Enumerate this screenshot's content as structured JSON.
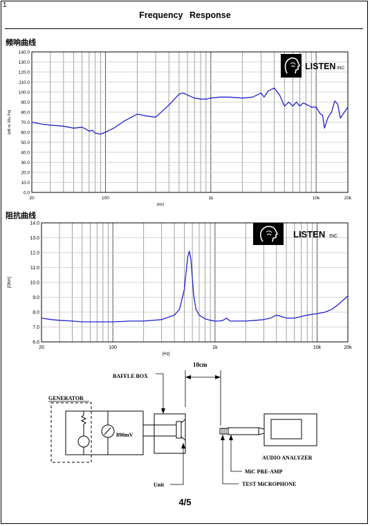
{
  "page": {
    "corner_mark": "1",
    "title": "Frequency    Response",
    "page_number": "4/5"
  },
  "frequency_section": {
    "label": "频响曲线"
  },
  "impedance_section": {
    "label": "阻抗曲线"
  },
  "logo": {
    "text": "LISTEN",
    "suffix": "INC",
    "icon": "head-profile-logo-icon"
  },
  "chart_data": [
    {
      "type": "line",
      "xscale": "log",
      "xlim": [
        20,
        20000
      ],
      "ylim": [
        0,
        140
      ],
      "yticks": [
        0,
        10,
        20,
        30,
        40,
        50,
        60,
        70,
        80,
        90,
        100,
        110,
        120,
        130,
        140
      ],
      "ytick_labels": [
        "0.0",
        "10.0",
        "20.0",
        "30.0",
        "40.0",
        "50.0",
        "60.0",
        "70.0",
        "80.0",
        "90.0",
        "100.0",
        "110.0",
        "120.0",
        "130.0",
        "140.0"
      ],
      "xtick_labels": [
        {
          "v": 20,
          "t": "20"
        },
        {
          "v": 100,
          "t": "100"
        },
        {
          "v": 1000,
          "t": "1k"
        },
        {
          "v": 10000,
          "t": "10k"
        },
        {
          "v": 20000,
          "t": "20k"
        }
      ],
      "xlabel": "[Hz]",
      "ylabel": "[dB re 20u Pa]",
      "grid": true,
      "line_color": "#2020d0",
      "series": [
        {
          "x": [
            20,
            25,
            30,
            40,
            50,
            60,
            65,
            70,
            75,
            80,
            90,
            100,
            120,
            150,
            200,
            250,
            300,
            400,
            500,
            550,
            600,
            700,
            800,
            900,
            1000,
            1200,
            1500,
            2000,
            2500,
            3000,
            3200,
            3500,
            4000,
            4500,
            5000,
            5500,
            6000,
            6500,
            7000,
            7500,
            8000,
            9000,
            10000,
            11000,
            11500,
            12000,
            12500,
            13000,
            14000,
            15000,
            16000,
            17000,
            18000,
            20000
          ],
          "y": [
            70,
            68,
            67,
            66,
            64,
            65,
            63,
            61,
            62,
            59,
            58,
            60,
            64,
            71,
            78,
            76,
            75,
            87,
            98,
            99,
            97,
            94,
            93,
            93,
            94,
            95,
            95,
            94,
            95,
            99,
            95,
            101,
            104,
            97,
            86,
            90,
            86,
            90,
            86,
            89,
            88,
            85,
            85,
            78,
            77,
            64,
            70,
            75,
            80,
            91,
            88,
            74,
            78,
            85
          ]
        }
      ]
    },
    {
      "type": "line",
      "xscale": "log",
      "xlim": [
        20,
        20000
      ],
      "ylim": [
        6,
        14
      ],
      "yticks": [
        6,
        7,
        8,
        9,
        10,
        11,
        12,
        13,
        14
      ],
      "ytick_labels": [
        "6.0",
        "7.0",
        "8.0",
        "9.0",
        "10.0",
        "11.0",
        "12.0",
        "13.0",
        "14.0"
      ],
      "xtick_labels": [
        {
          "v": 20,
          "t": "20"
        },
        {
          "v": 100,
          "t": "100"
        },
        {
          "v": 1000,
          "t": "1k"
        },
        {
          "v": 10000,
          "t": "10k"
        },
        {
          "v": 20000,
          "t": "20k"
        }
      ],
      "xlabel": "[Hz]",
      "ylabel": "[Ohm]",
      "grid": true,
      "line_color": "#2020d0",
      "series": [
        {
          "x": [
            20,
            25,
            30,
            40,
            50,
            60,
            80,
            100,
            150,
            200,
            300,
            400,
            450,
            500,
            520,
            540,
            560,
            580,
            600,
            620,
            650,
            700,
            800,
            900,
            1000,
            1100,
            1200,
            1300,
            1400,
            1600,
            2000,
            2500,
            3000,
            3500,
            4000,
            4500,
            5000,
            6000,
            7000,
            8000,
            10000,
            12000,
            14000,
            16000,
            18000,
            20000
          ],
          "y": [
            7.6,
            7.5,
            7.45,
            7.4,
            7.35,
            7.35,
            7.35,
            7.35,
            7.4,
            7.4,
            7.5,
            7.8,
            8.2,
            9.5,
            10.6,
            11.7,
            12.1,
            11.6,
            10.3,
            9.1,
            8.2,
            7.8,
            7.55,
            7.45,
            7.4,
            7.4,
            7.45,
            7.6,
            7.4,
            7.4,
            7.4,
            7.45,
            7.5,
            7.6,
            7.8,
            7.7,
            7.6,
            7.6,
            7.7,
            7.8,
            7.9,
            8.0,
            8.2,
            8.5,
            8.8,
            9.1
          ]
        }
      ]
    }
  ],
  "schematic": {
    "distance_label": "10cm",
    "baffle_box": "BAFFLE BOX",
    "generator": "GENERATOR",
    "voltage": "890mV",
    "unit": "Unit",
    "audio_analyzer": "AUDIO ANALYZER",
    "mic_preamp": "MiC PRE-AMP",
    "test_microphone": "TEST MiCROPHONE"
  }
}
